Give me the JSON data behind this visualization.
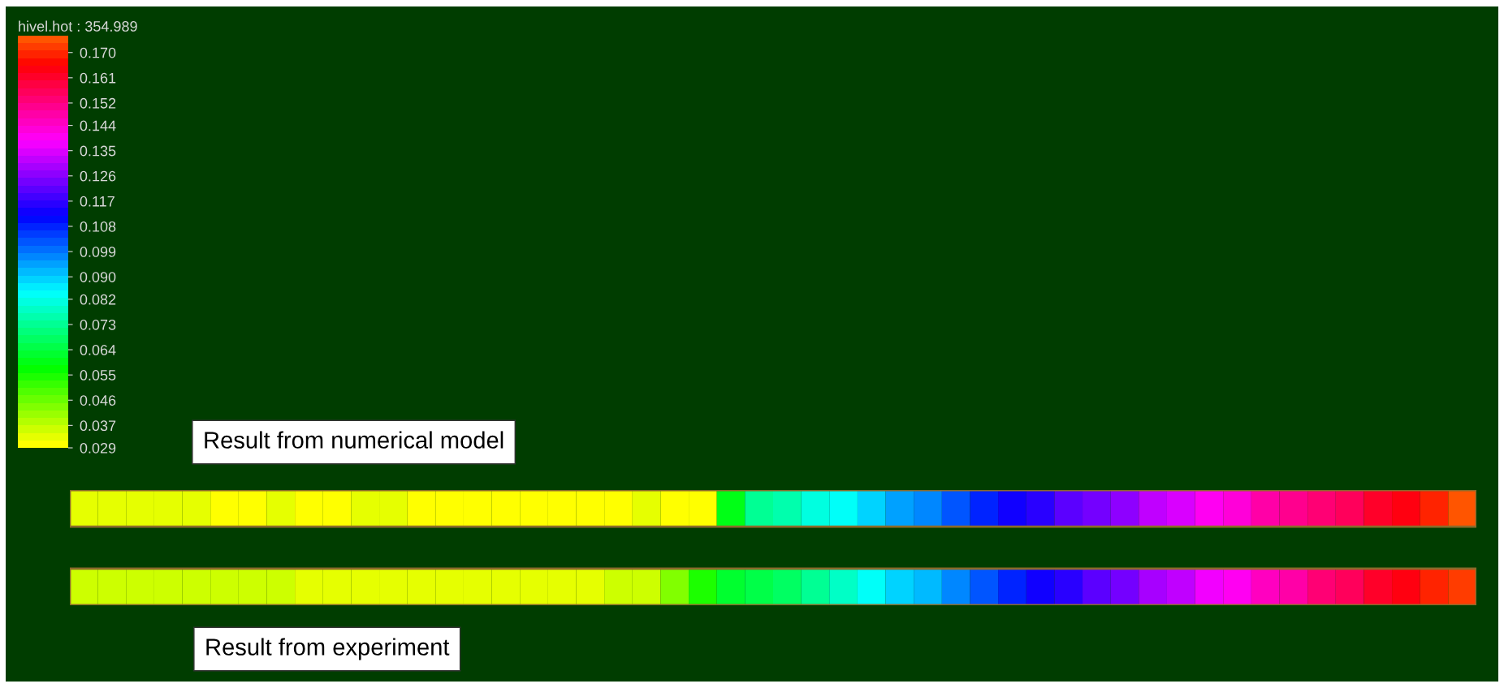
{
  "chart_data": {
    "type": "heatmap",
    "clabel": "hivel.hot : 354.989",
    "annotations": [
      "Result from numerical model",
      "Result from experiment"
    ],
    "categories": [
      null,
      null,
      null,
      null,
      null,
      null,
      null,
      null,
      null,
      null,
      null,
      null,
      null,
      null,
      null,
      null,
      null,
      null,
      null,
      null,
      null,
      null,
      null,
      null,
      null,
      null,
      null,
      null,
      null,
      null,
      null,
      null,
      null,
      null,
      null,
      null,
      null,
      null,
      null,
      null,
      null,
      null,
      null,
      null,
      null,
      null,
      null,
      null,
      null,
      null
    ],
    "y_categories": [
      null,
      null
    ],
    "cells": [
      [
        0.034,
        0.034,
        0.032,
        0.034,
        0.034,
        0.031,
        0.031,
        0.032,
        0.031,
        0.031,
        0.032,
        0.034,
        0.031,
        0.031,
        0.031,
        0.031,
        0.031,
        0.031,
        0.031,
        0.031,
        0.032,
        0.031,
        0.031,
        0.06,
        0.073,
        0.076,
        0.08,
        0.085,
        0.09,
        0.094,
        0.098,
        0.103,
        0.108,
        0.112,
        0.117,
        0.12,
        0.123,
        0.127,
        0.131,
        0.135,
        0.139,
        0.143,
        0.147,
        0.15,
        0.153,
        0.157,
        0.161,
        0.165,
        0.169,
        0.174
      ],
      [
        0.037,
        0.037,
        0.037,
        0.037,
        0.037,
        0.037,
        0.037,
        0.037,
        0.032,
        0.032,
        0.032,
        0.032,
        0.032,
        0.032,
        0.032,
        0.032,
        0.032,
        0.032,
        0.032,
        0.036,
        0.036,
        0.045,
        0.055,
        0.062,
        0.066,
        0.068,
        0.072,
        0.078,
        0.084,
        0.089,
        0.093,
        0.097,
        0.102,
        0.107,
        0.112,
        0.117,
        0.121,
        0.125,
        0.129,
        0.133,
        0.137,
        0.141,
        0.145,
        0.149,
        0.153,
        0.157,
        0.161,
        0.165,
        0.168,
        0.173
      ]
    ],
    "clim": [
      0.029,
      0.176
    ],
    "cticks": [
      {
        "value": 0.029,
        "label": "0.029"
      },
      {
        "value": 0.037,
        "label": "0.037"
      },
      {
        "value": 0.046,
        "label": "0.046"
      },
      {
        "value": 0.055,
        "label": "0.055"
      },
      {
        "value": 0.064,
        "label": "0.064"
      },
      {
        "value": 0.073,
        "label": "0.073"
      },
      {
        "value": 0.082,
        "label": "0.082"
      },
      {
        "value": 0.09,
        "label": "0.090"
      },
      {
        "value": 0.099,
        "label": "0.099"
      },
      {
        "value": 0.108,
        "label": "0.108"
      },
      {
        "value": 0.117,
        "label": "0.117"
      },
      {
        "value": 0.126,
        "label": "0.126"
      },
      {
        "value": 0.135,
        "label": "0.135"
      },
      {
        "value": 0.144,
        "label": "0.144"
      },
      {
        "value": 0.152,
        "label": "0.152"
      },
      {
        "value": 0.161,
        "label": "0.161"
      },
      {
        "value": 0.17,
        "label": "0.170"
      }
    ]
  }
}
